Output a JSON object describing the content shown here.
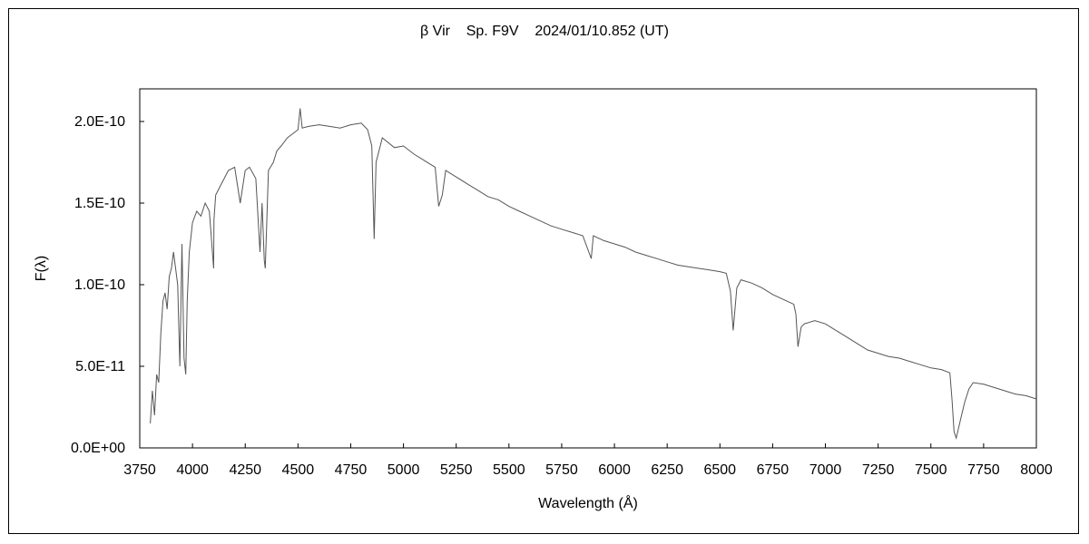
{
  "chart_data": {
    "type": "line",
    "title": "β Vir    Sp. F9V    2024/01/10.852 (UT)",
    "xlabel": "Wavelength (Å)",
    "ylabel": "F(λ)",
    "xlim": [
      3750,
      8000
    ],
    "ylim": [
      0,
      2.2e-10
    ],
    "x_ticks": [
      3750,
      4000,
      4250,
      4500,
      4750,
      5000,
      5250,
      5500,
      5750,
      6000,
      6250,
      6500,
      6750,
      7000,
      7250,
      7500,
      7750,
      8000
    ],
    "x_tick_labels": [
      "3750",
      "4000",
      "4250",
      "4500",
      "4750",
      "5000",
      "5250",
      "5500",
      "5750",
      "6000",
      "6250",
      "6500",
      "6750",
      "7000",
      "7250",
      "7500",
      "7750",
      "8000"
    ],
    "y_ticks": [
      0,
      5e-11,
      1e-10,
      1.5e-10,
      2e-10
    ],
    "y_tick_labels": [
      "0.0E+00",
      "5.0E-11",
      "1.0E-10",
      "1.5E-10",
      "2.0E-10"
    ],
    "grid": false,
    "legend": false,
    "line_color": "#555555",
    "series": [
      {
        "x": [
          3800,
          3810,
          3820,
          3830,
          3840,
          3850,
          3860,
          3870,
          3880,
          3890,
          3900,
          3910,
          3920,
          3930,
          3940,
          3950,
          3960,
          3968,
          3975,
          3985,
          4000,
          4020,
          4040,
          4060,
          4080,
          4100,
          4102,
          4110,
          4130,
          4150,
          4170,
          4200,
          4226,
          4250,
          4270,
          4300,
          4320,
          4330,
          4340,
          4345,
          4360,
          4383,
          4400,
          4420,
          4450,
          4480,
          4500,
          4510,
          4520,
          4550,
          4600,
          4650,
          4700,
          4750,
          4800,
          4830,
          4850,
          4861,
          4870,
          4900,
          4957,
          5000,
          5050,
          5100,
          5150,
          5167,
          5184,
          5200,
          5250,
          5300,
          5350,
          5400,
          5450,
          5500,
          5550,
          5600,
          5650,
          5700,
          5750,
          5800,
          5850,
          5890,
          5900,
          5950,
          6000,
          6050,
          6100,
          6150,
          6200,
          6250,
          6300,
          6350,
          6400,
          6450,
          6500,
          6530,
          6550,
          6563,
          6580,
          6600,
          6650,
          6700,
          6750,
          6800,
          6850,
          6860,
          6870,
          6885,
          6900,
          6950,
          7000,
          7050,
          7100,
          7150,
          7200,
          7250,
          7300,
          7350,
          7400,
          7450,
          7500,
          7550,
          7590,
          7600,
          7610,
          7620,
          7640,
          7660,
          7680,
          7700,
          7750,
          7800,
          7850,
          7900,
          7950,
          8000
        ],
        "y": [
          1.5e-11,
          3.5e-11,
          2e-11,
          4.5e-11,
          4e-11,
          7e-11,
          9e-11,
          9.5e-11,
          8.5e-11,
          1.05e-10,
          1.1e-10,
          1.2e-10,
          1.1e-10,
          1e-10,
          5e-11,
          1.25e-10,
          5.5e-11,
          4.5e-11,
          9e-11,
          1.2e-10,
          1.38e-10,
          1.45e-10,
          1.42e-10,
          1.5e-10,
          1.45e-10,
          1.1e-10,
          1.4e-10,
          1.55e-10,
          1.6e-10,
          1.65e-10,
          1.7e-10,
          1.72e-10,
          1.5e-10,
          1.7e-10,
          1.72e-10,
          1.65e-10,
          1.2e-10,
          1.5e-10,
          1.15e-10,
          1.1e-10,
          1.7e-10,
          1.75e-10,
          1.82e-10,
          1.85e-10,
          1.9e-10,
          1.93e-10,
          1.95e-10,
          2.08e-10,
          1.96e-10,
          1.97e-10,
          1.98e-10,
          1.97e-10,
          1.96e-10,
          1.98e-10,
          1.99e-10,
          1.95e-10,
          1.85e-10,
          1.28e-10,
          1.75e-10,
          1.9e-10,
          1.84e-10,
          1.85e-10,
          1.8e-10,
          1.76e-10,
          1.72e-10,
          1.48e-10,
          1.55e-10,
          1.7e-10,
          1.66e-10,
          1.62e-10,
          1.58e-10,
          1.54e-10,
          1.52e-10,
          1.48e-10,
          1.45e-10,
          1.42e-10,
          1.39e-10,
          1.36e-10,
          1.34e-10,
          1.32e-10,
          1.3e-10,
          1.16e-10,
          1.3e-10,
          1.27e-10,
          1.25e-10,
          1.23e-10,
          1.2e-10,
          1.18e-10,
          1.16e-10,
          1.14e-10,
          1.12e-10,
          1.11e-10,
          1.1e-10,
          1.09e-10,
          1.08e-10,
          1.07e-10,
          9.6e-11,
          7.2e-11,
          9.8e-11,
          1.03e-10,
          1.01e-10,
          9.8e-11,
          9.4e-11,
          9.1e-11,
          8.8e-11,
          8.2e-11,
          6.2e-11,
          7.4e-11,
          7.6e-11,
          7.8e-11,
          7.6e-11,
          7.2e-11,
          6.8e-11,
          6.4e-11,
          6e-11,
          5.8e-11,
          5.6e-11,
          5.5e-11,
          5.3e-11,
          5.1e-11,
          4.9e-11,
          4.8e-11,
          4.6e-11,
          3e-11,
          1e-11,
          6e-12,
          1.7e-11,
          2.8e-11,
          3.6e-11,
          4e-11,
          3.9e-11,
          3.7e-11,
          3.5e-11,
          3.3e-11,
          3.2e-11,
          3e-11
        ]
      }
    ]
  }
}
